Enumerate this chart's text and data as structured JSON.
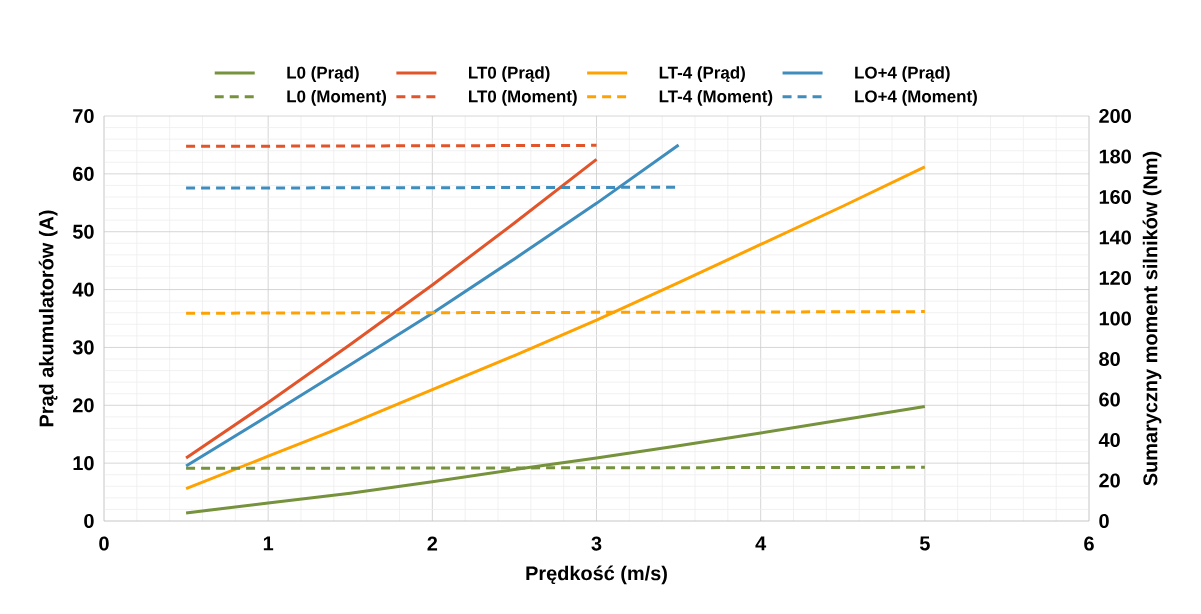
{
  "chart_data": {
    "type": "line",
    "xlabel": "Prędkość (m/s)",
    "ylabel": "Prąd akumulatorów (A)",
    "y2label": "Sumaryczny moment silników (Nm)",
    "xlim": [
      0,
      6
    ],
    "xticks": [
      0,
      1,
      2,
      3,
      4,
      5,
      6
    ],
    "ylim": [
      0,
      70
    ],
    "yticks": [
      0,
      10,
      20,
      30,
      40,
      50,
      60,
      70
    ],
    "y2lim": [
      0,
      200
    ],
    "y2ticks": [
      0,
      20,
      40,
      60,
      80,
      100,
      120,
      140,
      160,
      180,
      200
    ],
    "grid": true,
    "legend": "top",
    "marker": "none",
    "series": [
      {
        "name": "L0 (Prąd)",
        "color": "#76923c",
        "line_style": "solid",
        "x": [
          0.5,
          1,
          1.5,
          2,
          2.5,
          3,
          3.5,
          4,
          4.5,
          5
        ],
        "values": [
          1.4,
          3.1,
          4.8,
          6.8,
          8.9,
          10.9,
          13.0,
          15.2,
          17.5,
          19.8
        ]
      },
      {
        "name": "LT0 (Prąd)",
        "color": "#e2542a",
        "line_style": "solid",
        "x": [
          0.5,
          1,
          1.5,
          2,
          2.5,
          3
        ],
        "values": [
          10.9,
          20.5,
          30.5,
          40.8,
          51.5,
          62.5
        ]
      },
      {
        "name": "LT-4 (Prąd)",
        "color": "#ffa200",
        "line_style": "solid",
        "x": [
          0.5,
          1,
          1.5,
          2,
          2.5,
          3,
          3.5,
          4,
          4.5,
          5
        ],
        "values": [
          5.6,
          11.2,
          16.8,
          22.7,
          28.6,
          34.7,
          41.2,
          47.8,
          54.4,
          61.2
        ]
      },
      {
        "name": "LO+4 (Prąd)",
        "color": "#3e8dbd",
        "line_style": "solid",
        "x": [
          0.5,
          1,
          1.5,
          2,
          2.5,
          3,
          3.5
        ],
        "values": [
          9.5,
          18.2,
          27.0,
          35.9,
          45.3,
          54.9,
          65.0
        ]
      },
      {
        "name": "L0 (Moment)",
        "color": "#76923c",
        "line_style": "dashed",
        "axis": "y2",
        "x": [
          0.5,
          5
        ],
        "values": [
          26.0,
          26.5
        ]
      },
      {
        "name": "LT0 (Moment)",
        "color": "#e2542a",
        "line_style": "dashed",
        "axis": "y2",
        "x": [
          0.5,
          3
        ],
        "values": [
          185,
          185.5
        ]
      },
      {
        "name": "LT-4 (Moment)",
        "color": "#ffa200",
        "line_style": "dashed",
        "axis": "y2",
        "x": [
          0.5,
          5
        ],
        "values": [
          102.6,
          103.4
        ]
      },
      {
        "name": "LO+4 (Moment)",
        "color": "#3e8dbd",
        "line_style": "dashed",
        "axis": "y2",
        "x": [
          0.5,
          3.5
        ],
        "values": [
          164.4,
          164.8
        ]
      }
    ]
  }
}
